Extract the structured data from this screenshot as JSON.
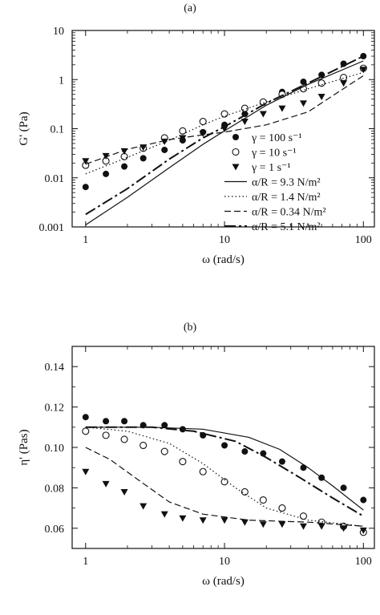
{
  "figure": {
    "panel_a_label": "(a)",
    "panel_b_label": "(b)"
  },
  "chart_data": [
    {
      "type": "scatter",
      "panel": "(a)",
      "xlabel": "ω (rad/s)",
      "ylabel": "G' (Pa)",
      "xscale": "log",
      "yscale": "log",
      "xlim": [
        0.8,
        120
      ],
      "ylim": [
        0.001,
        10
      ],
      "xticks": [
        "1",
        "10",
        "100"
      ],
      "yticks": [
        "0.001",
        "0.01",
        "0.1",
        "1",
        "10"
      ],
      "legend_position": "lower-right",
      "series": [
        {
          "name": "γ = 100 s⁻¹",
          "marker": "filled-circle",
          "points": [
            [
              1,
              0.0065
            ],
            [
              1.4,
              0.012
            ],
            [
              1.9,
              0.017
            ],
            [
              2.6,
              0.025
            ],
            [
              3.7,
              0.037
            ],
            [
              5,
              0.058
            ],
            [
              7,
              0.085
            ],
            [
              10,
              0.12
            ],
            [
              14,
              0.2
            ],
            [
              19,
              0.34
            ],
            [
              26,
              0.56
            ],
            [
              37,
              0.9
            ],
            [
              50,
              1.25
            ],
            [
              72,
              2.1
            ],
            [
              100,
              3.0
            ]
          ]
        },
        {
          "name": "γ = 10 s⁻¹",
          "marker": "open-circle",
          "points": [
            [
              1,
              0.018
            ],
            [
              1.4,
              0.022
            ],
            [
              1.9,
              0.027
            ],
            [
              2.6,
              0.04
            ],
            [
              3.7,
              0.065
            ],
            [
              5,
              0.09
            ],
            [
              7,
              0.14
            ],
            [
              10,
              0.2
            ],
            [
              14,
              0.26
            ],
            [
              19,
              0.35
            ],
            [
              26,
              0.5
            ],
            [
              37,
              0.65
            ],
            [
              50,
              0.85
            ],
            [
              72,
              1.1
            ],
            [
              100,
              1.7
            ]
          ]
        },
        {
          "name": "γ = 1 s⁻¹",
          "marker": "filled-triangle-down",
          "points": [
            [
              1,
              0.022
            ],
            [
              1.4,
              0.028
            ],
            [
              1.9,
              0.035
            ],
            [
              2.6,
              0.042
            ],
            [
              3.7,
              0.055
            ],
            [
              5,
              0.065
            ],
            [
              7,
              0.08
            ],
            [
              10,
              0.1
            ],
            [
              14,
              0.14
            ],
            [
              19,
              0.2
            ],
            [
              26,
              0.26
            ],
            [
              37,
              0.33
            ],
            [
              50,
              0.45
            ],
            [
              72,
              0.85
            ],
            [
              100,
              1.6
            ]
          ]
        },
        {
          "name": "α/R = 9.3 N/m²",
          "style": "solid",
          "points": [
            [
              1,
              0.0011
            ],
            [
              2,
              0.004
            ],
            [
              4,
              0.016
            ],
            [
              7,
              0.048
            ],
            [
              10,
              0.09
            ],
            [
              20,
              0.3
            ],
            [
              40,
              0.8
            ],
            [
              100,
              2.4
            ]
          ]
        },
        {
          "name": "α/R = 1.4 N/m²",
          "style": "dotted",
          "points": [
            [
              1,
              0.012
            ],
            [
              2,
              0.026
            ],
            [
              4,
              0.058
            ],
            [
              7,
              0.12
            ],
            [
              10,
              0.18
            ],
            [
              20,
              0.35
            ],
            [
              40,
              0.65
            ],
            [
              100,
              1.4
            ]
          ]
        },
        {
          "name": "α/R = 0.34 N/m²",
          "style": "dashed",
          "points": [
            [
              1,
              0.019
            ],
            [
              2,
              0.038
            ],
            [
              4,
              0.06
            ],
            [
              7,
              0.075
            ],
            [
              10,
              0.085
            ],
            [
              20,
              0.12
            ],
            [
              40,
              0.22
            ],
            [
              100,
              1.2
            ]
          ]
        },
        {
          "name": "α/R = 5.1 N/m²",
          "style": "long-dash",
          "points": [
            [
              1,
              0.0018
            ],
            [
              2,
              0.006
            ],
            [
              4,
              0.024
            ],
            [
              7,
              0.065
            ],
            [
              10,
              0.11
            ],
            [
              20,
              0.33
            ],
            [
              40,
              0.85
            ],
            [
              100,
              3.0
            ]
          ]
        }
      ]
    },
    {
      "type": "scatter",
      "panel": "(b)",
      "xlabel": "ω (rad/s)",
      "ylabel": "η' (Pas)",
      "xscale": "log",
      "yscale": "linear",
      "xlim": [
        0.8,
        120
      ],
      "ylim": [
        0.05,
        0.15
      ],
      "xticks": [
        "1",
        "10",
        "100"
      ],
      "yticks": [
        "0.06",
        "0.08",
        "0.10",
        "0.12",
        "0.14"
      ],
      "series": [
        {
          "name": "γ = 100 s⁻¹",
          "marker": "filled-circle",
          "points": [
            [
              1,
              0.115
            ],
            [
              1.4,
              0.113
            ],
            [
              1.9,
              0.113
            ],
            [
              2.6,
              0.111
            ],
            [
              3.7,
              0.111
            ],
            [
              5,
              0.109
            ],
            [
              7,
              0.106
            ],
            [
              10,
              0.101
            ],
            [
              14,
              0.098
            ],
            [
              19,
              0.097
            ],
            [
              26,
              0.093
            ],
            [
              37,
              0.09
            ],
            [
              50,
              0.085
            ],
            [
              72,
              0.08
            ],
            [
              100,
              0.074
            ]
          ]
        },
        {
          "name": "γ = 10 s⁻¹",
          "marker": "open-circle",
          "points": [
            [
              1,
              0.108
            ],
            [
              1.4,
              0.106
            ],
            [
              1.9,
              0.104
            ],
            [
              2.6,
              0.101
            ],
            [
              3.7,
              0.098
            ],
            [
              5,
              0.093
            ],
            [
              7,
              0.088
            ],
            [
              10,
              0.083
            ],
            [
              14,
              0.078
            ],
            [
              19,
              0.074
            ],
            [
              26,
              0.07
            ],
            [
              37,
              0.066
            ],
            [
              50,
              0.063
            ],
            [
              72,
              0.061
            ],
            [
              100,
              0.058
            ]
          ]
        },
        {
          "name": "γ = 1 s⁻¹",
          "marker": "filled-triangle-down",
          "points": [
            [
              1,
              0.088
            ],
            [
              1.4,
              0.082
            ],
            [
              1.9,
              0.078
            ],
            [
              2.6,
              0.071
            ],
            [
              3.7,
              0.067
            ],
            [
              5,
              0.065
            ],
            [
              7,
              0.064
            ],
            [
              10,
              0.064
            ],
            [
              14,
              0.063
            ],
            [
              19,
              0.062
            ],
            [
              26,
              0.062
            ],
            [
              37,
              0.061
            ],
            [
              50,
              0.061
            ],
            [
              72,
              0.06
            ],
            [
              100,
              0.059
            ]
          ]
        },
        {
          "name": "α/R = 9.3 N/m²",
          "style": "solid",
          "points": [
            [
              1,
              0.11
            ],
            [
              3,
              0.11
            ],
            [
              7,
              0.109
            ],
            [
              15,
              0.105
            ],
            [
              25,
              0.099
            ],
            [
              40,
              0.09
            ],
            [
              60,
              0.081
            ],
            [
              100,
              0.069
            ]
          ]
        },
        {
          "name": "α/R = 1.4 N/m²",
          "style": "dotted",
          "points": [
            [
              1,
              0.11
            ],
            [
              2,
              0.108
            ],
            [
              4,
              0.102
            ],
            [
              7,
              0.092
            ],
            [
              12,
              0.08
            ],
            [
              20,
              0.07
            ],
            [
              40,
              0.064
            ],
            [
              100,
              0.061
            ]
          ]
        },
        {
          "name": "α/R = 0.34 N/m²",
          "style": "dashed",
          "points": [
            [
              1,
              0.1
            ],
            [
              1.5,
              0.094
            ],
            [
              2.5,
              0.083
            ],
            [
              4,
              0.073
            ],
            [
              7,
              0.067
            ],
            [
              15,
              0.064
            ],
            [
              40,
              0.063
            ],
            [
              100,
              0.061
            ]
          ]
        },
        {
          "name": "α/R = 5.1 N/m²",
          "style": "long-dash",
          "points": [
            [
              1,
              0.11
            ],
            [
              3,
              0.11
            ],
            [
              6,
              0.108
            ],
            [
              12,
              0.103
            ],
            [
              20,
              0.095
            ],
            [
              35,
              0.085
            ],
            [
              60,
              0.075
            ],
            [
              100,
              0.066
            ]
          ]
        }
      ]
    }
  ]
}
